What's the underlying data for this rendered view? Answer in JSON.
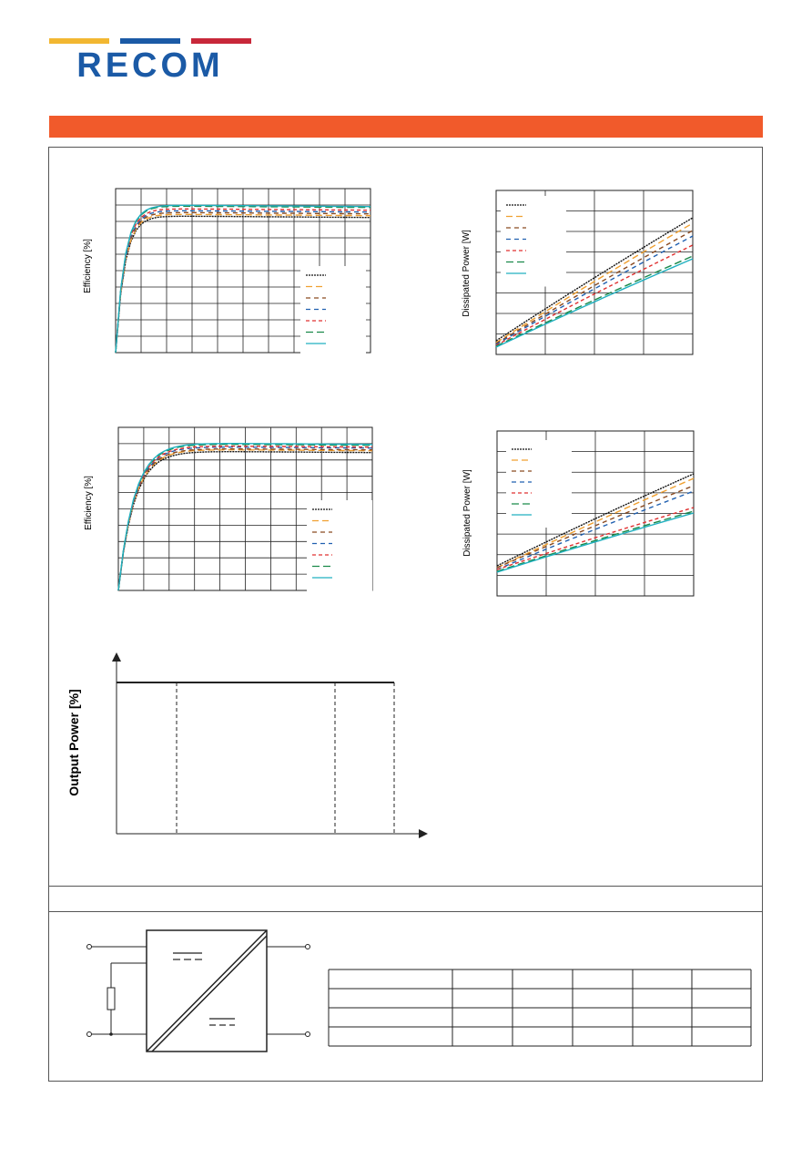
{
  "brand": {
    "name": "RECOM",
    "colors": {
      "blue": "#1b5aa6",
      "yellow": "#f2b731",
      "red": "#c8283a",
      "accent": "#f15a2b"
    }
  },
  "charts": {
    "efficiency_top": {
      "ylabel": "Efficiency [%]"
    },
    "efficiency_bottom": {
      "ylabel": "Efficiency [%]"
    },
    "dissipated_top": {
      "ylabel": "Dissipated Power [W]"
    },
    "dissipated_bottom": {
      "ylabel": "Dissipated Power [W]"
    },
    "derating": {
      "ylabel": "Output Power [%]"
    }
  },
  "chart_data": [
    {
      "type": "line",
      "title": "",
      "ylabel": "Efficiency [%]",
      "xlabel": "",
      "grid": true,
      "legend_placement": "bottom-right",
      "series": [
        {
          "values": []
        },
        {
          "values": []
        },
        {
          "values": []
        },
        {
          "values": []
        },
        {
          "values": []
        },
        {
          "values": []
        },
        {
          "values": []
        }
      ]
    },
    {
      "type": "line",
      "title": "",
      "ylabel": "Dissipated Power [W]",
      "xlabel": "",
      "grid": true,
      "legend_placement": "top-left",
      "series": [
        {
          "values": []
        },
        {
          "values": []
        },
        {
          "values": []
        },
        {
          "values": []
        },
        {
          "values": []
        },
        {
          "values": []
        },
        {
          "values": []
        }
      ]
    },
    {
      "type": "line",
      "title": "",
      "ylabel": "Efficiency [%]",
      "xlabel": "",
      "grid": true,
      "legend_placement": "bottom-right",
      "series": [
        {
          "values": []
        },
        {
          "values": []
        },
        {
          "values": []
        },
        {
          "values": []
        },
        {
          "values": []
        },
        {
          "values": []
        },
        {
          "values": []
        }
      ]
    },
    {
      "type": "line",
      "title": "",
      "ylabel": "Dissipated Power [W]",
      "xlabel": "",
      "grid": true,
      "legend_placement": "top-left",
      "series": [
        {
          "values": []
        },
        {
          "values": []
        },
        {
          "values": []
        },
        {
          "values": []
        },
        {
          "values": []
        },
        {
          "values": []
        },
        {
          "values": []
        }
      ]
    },
    {
      "type": "line",
      "title": "",
      "ylabel": "Output Power [%]",
      "xlabel": "",
      "grid": false
    }
  ],
  "series_colors": [
    "#111111",
    "#f0a030",
    "#8a4a20",
    "#2060b0",
    "#e03030",
    "#1a8a4a",
    "#20b0c0"
  ],
  "table": {
    "columns": 6,
    "header": [
      "",
      "",
      "",
      "",
      "",
      ""
    ],
    "rows": [
      [
        "",
        "",
        "",
        "",
        "",
        ""
      ],
      [
        "",
        "",
        "",
        "",
        "",
        ""
      ],
      [
        "",
        "",
        "",
        "",
        "",
        ""
      ]
    ]
  }
}
